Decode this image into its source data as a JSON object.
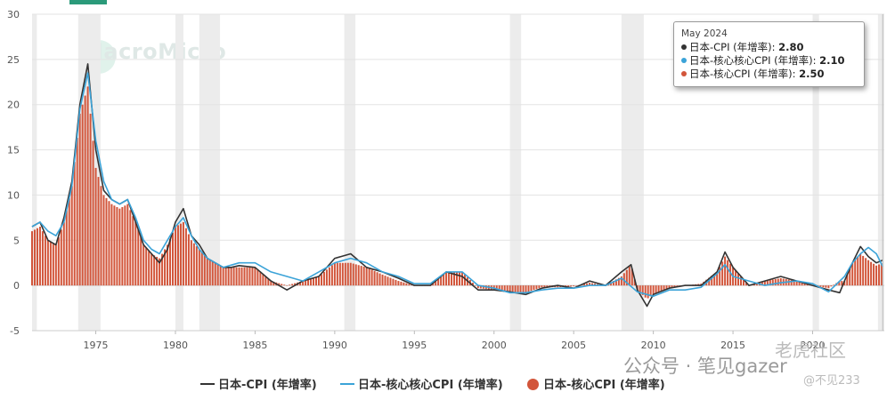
{
  "chart_data": {
    "type": "bar",
    "x_range": [
      1971,
      2024.5
    ],
    "ylim": [
      -5,
      30
    ],
    "yticks": [
      -5,
      0,
      5,
      10,
      15,
      20,
      25,
      30
    ],
    "xticks": [
      1975,
      1980,
      1985,
      1990,
      1995,
      2000,
      2005,
      2010,
      2015,
      2020
    ],
    "grid": true,
    "recession_shading": [
      [
        1971.0,
        1971.3
      ],
      [
        1973.9,
        1975.3
      ],
      [
        1980.0,
        1980.5
      ],
      [
        1981.5,
        1982.8
      ],
      [
        1990.6,
        1991.3
      ],
      [
        2001.0,
        2001.7
      ],
      [
        2008.0,
        2009.4
      ],
      [
        2020.0,
        2020.4
      ],
      [
        2024.1,
        2024.5
      ]
    ],
    "series": [
      {
        "name": "日本-CPI (年增率)",
        "kind": "line",
        "color": "#333333",
        "x": [
          1971.0,
          1971.5,
          1972.0,
          1972.5,
          1973.0,
          1973.5,
          1974.0,
          1974.5,
          1975.0,
          1975.5,
          1976.0,
          1976.5,
          1977.0,
          1977.5,
          1978.0,
          1978.5,
          1979.0,
          1979.5,
          1980.0,
          1980.5,
          1981.0,
          1981.5,
          1982.0,
          1982.5,
          1983.0,
          1983.5,
          1984.0,
          1985.0,
          1986.0,
          1987.0,
          1988.0,
          1989.0,
          1990.0,
          1991.0,
          1992.0,
          1993.0,
          1994.0,
          1995.0,
          1996.0,
          1997.0,
          1998.0,
          1999.0,
          2000.0,
          2001.0,
          2002.0,
          2003.0,
          2004.0,
          2005.0,
          2006.0,
          2007.0,
          2008.0,
          2008.6,
          2009.0,
          2009.6,
          2010.0,
          2011.0,
          2012.0,
          2013.0,
          2014.0,
          2014.5,
          2015.0,
          2016.0,
          2017.0,
          2018.0,
          2019.0,
          2020.0,
          2021.0,
          2021.7,
          2022.0,
          2022.5,
          2023.0,
          2023.5,
          2024.0,
          2024.4
        ],
        "y": [
          6.5,
          7.0,
          5.0,
          4.5,
          7.5,
          11.5,
          20.0,
          24.5,
          15.0,
          10.5,
          9.5,
          9.0,
          9.5,
          7.0,
          4.5,
          3.5,
          2.5,
          4.0,
          7.0,
          8.5,
          5.5,
          4.5,
          3.0,
          2.5,
          2.0,
          2.0,
          2.2,
          2.0,
          0.5,
          -0.5,
          0.5,
          1.0,
          3.0,
          3.5,
          2.0,
          1.5,
          0.8,
          0.0,
          0.0,
          1.5,
          1.0,
          -0.5,
          -0.5,
          -0.7,
          -1.0,
          -0.3,
          0.0,
          -0.3,
          0.5,
          0.0,
          1.5,
          2.3,
          -0.5,
          -2.3,
          -1.0,
          -0.3,
          0.0,
          0.0,
          1.5,
          3.7,
          2.0,
          0.0,
          0.5,
          1.0,
          0.5,
          0.0,
          -0.5,
          -0.8,
          0.5,
          2.5,
          4.3,
          3.2,
          2.5,
          2.8
        ]
      },
      {
        "name": "日本-核心核心CPI (年增率)",
        "kind": "line",
        "color": "#3ba3d8",
        "x": [
          1971.0,
          1971.5,
          1972.0,
          1972.5,
          1973.0,
          1973.5,
          1974.0,
          1974.5,
          1975.0,
          1975.5,
          1976.0,
          1976.5,
          1977.0,
          1977.5,
          1978.0,
          1978.5,
          1979.0,
          1979.5,
          1980.0,
          1980.5,
          1981.0,
          1981.5,
          1982.0,
          1983.0,
          1984.0,
          1985.0,
          1986.0,
          1987.0,
          1988.0,
          1989.0,
          1990.0,
          1991.0,
          1992.0,
          1993.0,
          1994.0,
          1995.0,
          1996.0,
          1997.0,
          1998.0,
          1999.0,
          2000.0,
          2001.0,
          2002.0,
          2003.0,
          2004.0,
          2005.0,
          2006.0,
          2007.0,
          2008.0,
          2009.0,
          2010.0,
          2011.0,
          2012.0,
          2013.0,
          2014.0,
          2014.5,
          2015.0,
          2016.0,
          2017.0,
          2018.0,
          2019.0,
          2020.0,
          2021.0,
          2022.0,
          2022.5,
          2023.0,
          2023.5,
          2024.0,
          2024.4
        ],
        "y": [
          6.5,
          7.0,
          6.0,
          5.5,
          7.0,
          11.0,
          19.5,
          23.5,
          16.0,
          11.5,
          9.5,
          9.0,
          9.5,
          7.5,
          5.0,
          4.0,
          3.5,
          5.0,
          6.5,
          7.5,
          5.5,
          4.0,
          3.0,
          2.0,
          2.5,
          2.5,
          1.5,
          1.0,
          0.5,
          1.5,
          2.5,
          3.0,
          2.5,
          1.5,
          1.0,
          0.2,
          0.2,
          1.5,
          1.5,
          0.0,
          -0.3,
          -0.8,
          -0.8,
          -0.5,
          -0.3,
          -0.3,
          0.0,
          0.0,
          0.8,
          -0.7,
          -1.2,
          -0.5,
          -0.5,
          -0.2,
          1.3,
          2.3,
          1.0,
          0.5,
          0.0,
          0.3,
          0.5,
          0.2,
          -0.7,
          1.0,
          2.5,
          3.5,
          4.2,
          3.5,
          2.1
        ]
      },
      {
        "name": "日本-核心CPI (年增率)",
        "kind": "bar",
        "color": "#d2553a",
        "x": [
          1971.0,
          1971.5,
          1972.0,
          1972.5,
          1973.0,
          1973.5,
          1974.0,
          1974.5,
          1975.0,
          1975.5,
          1976.0,
          1976.5,
          1977.0,
          1977.5,
          1978.0,
          1978.5,
          1979.0,
          1979.5,
          1980.0,
          1980.5,
          1981.0,
          1981.5,
          1982.0,
          1982.5,
          1983.0,
          1984.0,
          1985.0,
          1986.0,
          1987.0,
          1988.0,
          1989.0,
          1990.0,
          1991.0,
          1992.0,
          1993.0,
          1994.0,
          1995.0,
          1996.0,
          1997.0,
          1998.0,
          1999.0,
          2000.0,
          2001.0,
          2002.0,
          2003.0,
          2004.0,
          2005.0,
          2006.0,
          2007.0,
          2008.0,
          2008.6,
          2009.0,
          2009.6,
          2010.0,
          2011.0,
          2012.0,
          2013.0,
          2014.0,
          2014.5,
          2015.0,
          2016.0,
          2017.0,
          2018.0,
          2019.0,
          2020.0,
          2021.0,
          2021.7,
          2022.0,
          2022.5,
          2023.0,
          2023.5,
          2024.0,
          2024.4
        ],
        "y": [
          6.0,
          6.5,
          5.0,
          4.5,
          7.0,
          11.0,
          19.0,
          22.0,
          13.0,
          10.0,
          9.0,
          8.5,
          9.0,
          7.0,
          4.5,
          3.5,
          3.0,
          4.5,
          6.5,
          7.0,
          5.0,
          4.0,
          3.0,
          2.5,
          2.0,
          2.0,
          2.0,
          0.5,
          0.0,
          0.5,
          1.0,
          2.5,
          2.5,
          2.0,
          1.2,
          0.5,
          0.0,
          0.0,
          1.5,
          1.5,
          -0.3,
          -0.5,
          -0.7,
          -0.8,
          -0.2,
          -0.2,
          -0.1,
          0.3,
          0.0,
          1.0,
          2.3,
          -0.5,
          -1.5,
          -1.0,
          -0.3,
          0.0,
          0.2,
          1.5,
          3.2,
          2.0,
          0.0,
          0.5,
          0.8,
          0.5,
          0.0,
          -0.3,
          0.5,
          0.5,
          2.5,
          3.5,
          2.8,
          2.2,
          2.5
        ]
      }
    ]
  },
  "tooltip": {
    "date": "May 2024",
    "rows": [
      {
        "label": "日本-CPI (年增率): ",
        "value": "2.80",
        "color": "#333333"
      },
      {
        "label": "日本-核心核心CPI (年增率): ",
        "value": "2.10",
        "color": "#3ba3d8"
      },
      {
        "label": "日本-核心CPI (年增率): ",
        "value": "2.50",
        "color": "#d2553a"
      }
    ]
  },
  "legend": {
    "items": [
      {
        "label": "日本-CPI (年增率)",
        "color": "#333333",
        "kind": "line"
      },
      {
        "label": "日本-核心核心CPI (年增率)",
        "color": "#3ba3d8",
        "kind": "line"
      },
      {
        "label": "日本-核心CPI (年增率)",
        "color": "#d2553a",
        "kind": "dot"
      }
    ]
  },
  "watermark": {
    "text": "MacroMicro"
  },
  "footer": {
    "account": "公众号 · 笔见gazer",
    "forum": "老虎社区",
    "user": "@不见233"
  }
}
